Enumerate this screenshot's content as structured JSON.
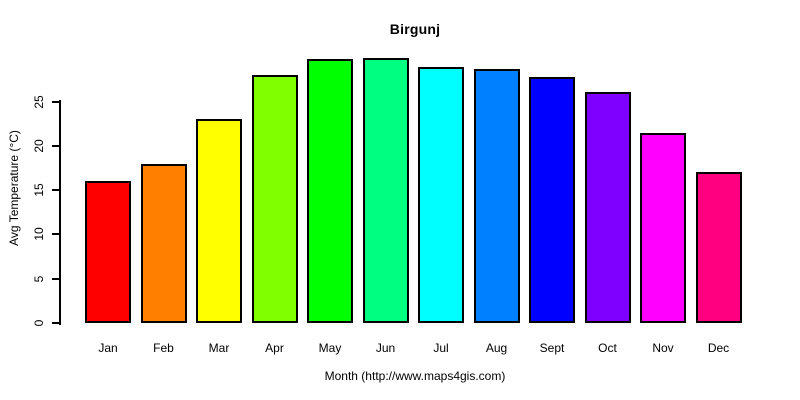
{
  "chart_data": {
    "type": "bar",
    "title": "Birgunj",
    "xlabel": "Month (http://www.maps4gis.com)",
    "ylabel": "Avg Temperature (°C)",
    "categories": [
      "Jan",
      "Feb",
      "Mar",
      "Apr",
      "May",
      "Jun",
      "Jul",
      "Aug",
      "Sept",
      "Oct",
      "Nov",
      "Dec"
    ],
    "values": [
      16,
      18,
      23,
      28,
      29.8,
      29.9,
      28.9,
      28.7,
      27.8,
      26.1,
      21.4,
      17
    ],
    "bar_colors": [
      "#FF0000",
      "#FF8000",
      "#FFFF00",
      "#80FF00",
      "#00FF00",
      "#00FF80",
      "#00FFFF",
      "#0080FF",
      "#0000FF",
      "#8000FF",
      "#FF00FF",
      "#FF0080"
    ],
    "bar_border_color": "#000000",
    "yticks": [
      0,
      5,
      10,
      15,
      20,
      25
    ],
    "ylim": [
      0,
      31
    ],
    "grid": false,
    "legend": null,
    "background_color": "#FFFFFF",
    "text_color": "#000000"
  }
}
